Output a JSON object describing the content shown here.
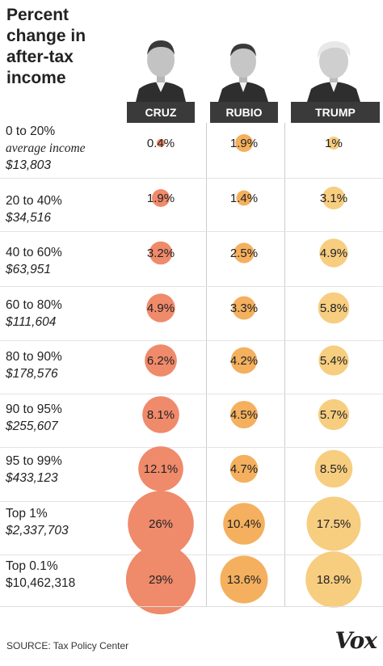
{
  "title": "Percent change in after-tax income",
  "columns": [
    "CRUZ",
    "RUBIO",
    "TRUMP"
  ],
  "colors": {
    "cruz": "#ef8a6b",
    "rubio": "#f4b05e",
    "trump": "#f7cd80",
    "header_bg": "#3a3a3a"
  },
  "rows": [
    {
      "label": "0 to 20%",
      "sub": "average income",
      "amount": "$13,803"
    },
    {
      "label": "20 to 40%",
      "sub": "",
      "amount": "$34,516"
    },
    {
      "label": "40 to 60%",
      "sub": "",
      "amount": "$63,951"
    },
    {
      "label": "60 to 80%",
      "sub": "",
      "amount": "$111,604"
    },
    {
      "label": "80 to 90%",
      "sub": "",
      "amount": "$178,576"
    },
    {
      "label": "90 to 95%",
      "sub": "",
      "amount": "$255,607"
    },
    {
      "label": "95 to 99%",
      "sub": "",
      "amount": "$433,123"
    },
    {
      "label": "Top 1%",
      "sub": "",
      "amount": "$2,337,703"
    },
    {
      "label": "Top 0.1%",
      "sub": "",
      "amount": "$10,462,318"
    }
  ],
  "chart_data": {
    "type": "bubble-table",
    "title": "Percent change in after-tax income",
    "categories": [
      "0 to 20%",
      "20 to 40%",
      "40 to 60%",
      "60 to 80%",
      "80 to 90%",
      "90 to 95%",
      "95 to 99%",
      "Top 1%",
      "Top 0.1%"
    ],
    "series": [
      {
        "name": "CRUZ",
        "values": [
          0.4,
          1.9,
          3.2,
          4.9,
          6.2,
          8.1,
          12.1,
          26,
          29
        ],
        "labels": [
          "0.4%",
          "1.9%",
          "3.2%",
          "4.9%",
          "6.2%",
          "8.1%",
          "12.1%",
          "26%",
          "29%"
        ]
      },
      {
        "name": "RUBIO",
        "values": [
          1.9,
          1.4,
          2.5,
          3.3,
          4.2,
          4.5,
          4.7,
          10.4,
          13.6
        ],
        "labels": [
          "1.9%",
          "1.4%",
          "2.5%",
          "3.3%",
          "4.2%",
          "4.5%",
          "4.7%",
          "10.4%",
          "13.6%"
        ]
      },
      {
        "name": "TRUMP",
        "values": [
          1,
          3.1,
          4.9,
          5.8,
          5.4,
          5.7,
          8.5,
          17.5,
          18.9
        ],
        "labels": [
          "1%",
          "3.1%",
          "4.9%",
          "5.8%",
          "5.4%",
          "5.7%",
          "8.5%",
          "17.5%",
          "18.9%"
        ]
      }
    ]
  },
  "footer": {
    "source": "SOURCE: Tax Policy Center",
    "logo": "Vox"
  }
}
